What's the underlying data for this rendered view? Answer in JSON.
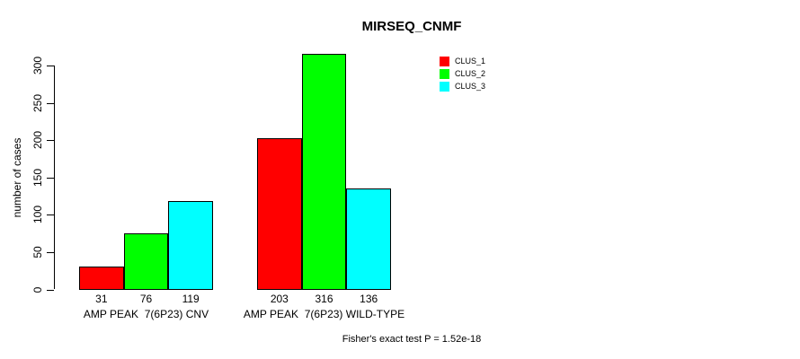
{
  "chart_data": {
    "type": "bar",
    "title": "MIRSEQ_CNMF",
    "xlabel": "",
    "ylabel": "number of cases",
    "categories": [
      "AMP PEAK  7(6P23) CNV",
      "AMP PEAK  7(6P23) WILD-TYPE"
    ],
    "series": [
      {
        "name": "CLUS_1",
        "color": "#ff0000",
        "values": [
          31,
          203
        ]
      },
      {
        "name": "CLUS_2",
        "color": "#00ff00",
        "values": [
          76,
          316
        ]
      },
      {
        "name": "CLUS_3",
        "color": "#00ffff",
        "values": [
          119,
          136
        ]
      }
    ],
    "yticks": [
      0,
      50,
      100,
      150,
      200,
      250,
      300
    ],
    "ylim": [
      0,
      316
    ],
    "grid": false,
    "bar_value_labels": [
      [
        31,
        76,
        119
      ],
      [
        203,
        316,
        136
      ]
    ],
    "legend_position": "top-right",
    "annotation": "Fisher's exact test P = 1.52e-18"
  }
}
